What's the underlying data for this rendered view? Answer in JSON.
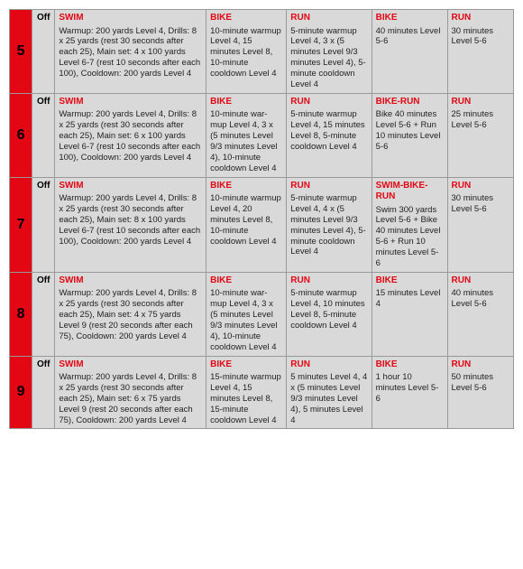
{
  "colors": {
    "accent": "#e30613",
    "shade": "#d9d9d9"
  },
  "off_label": "Off",
  "rows": [
    {
      "week": "5",
      "swim_hd": "SWIM",
      "swim": "Warmup: 200 yards Level 4, Drills: 8 x 25 yards (rest 30 seconds after each 25), Main set: 4 x 100  yards Level 6-7 (rest 10 seconds after each 100), Cooldown: 200 yards Level 4",
      "bike_hd": "BIKE",
      "bike": "10-minute warmup Level 4, 15 minutes Level 8, 10-minute cooldown Level 4",
      "run_hd": "RUN",
      "run": "5-minute warmup Level 4, 3 x (5 minutes Level 9/3 minutes Level 4), 5-minute cooldown Level 4",
      "brk_hd": "BIKE",
      "brk": "40 minutes Level 5-6",
      "run2_hd": "RUN",
      "run2": "30 minutes Level 5-6"
    },
    {
      "week": "6",
      "swim_hd": "SWIM",
      "swim": "Warmup: 200 yards Level 4, Drills: 8 x 25 yards (rest 30 seconds after each 25), Main set: 6 x 100  yards Level 6-7 (rest 10 seconds after each 100), Cooldown: 200 yards Level 4",
      "bike_hd": "BIKE",
      "bike": "10-minute war-mup Level 4, 3 x (5 minutes Level 9/3 minutes Level 4), 10-minute cooldown Level 4",
      "run_hd": "RUN",
      "run": "5-minute warmup Level 4, 15 minutes Level 8, 5-minute cooldown Level 4",
      "brk_hd": "BIKE-RUN",
      "brk": "Bike 40 minutes Level 5-6 + Run 10 minutes Level 5-6",
      "run2_hd": "RUN",
      "run2": "25 minutes Level 5-6"
    },
    {
      "week": "7",
      "swim_hd": "SWIM",
      "swim": "Warmup: 200 yards Level 4, Drills: 8 x 25 yards (rest 30 seconds after each 25), Main set: 8 x 100  yards Level 6-7 (rest 10 seconds after each 100), Cooldown: 200 yards Level 4",
      "bike_hd": "BIKE",
      "bike": "10-minute warmup Level 4, 20 minutes Level 8, 10-minute cooldown Level 4",
      "run_hd": "RUN",
      "run": "5-minute warmup Level 4, 4 x (5 minutes Level 9/3 minutes Level 4), 5-minute cooldown Level 4",
      "brk_hd": "SWIM-BIKE-RUN",
      "brk": "Swim 300 yards Level 5-6 + Bike 40 minutes Level 5-6 + Run 10 minutes Level 5-6",
      "run2_hd": "RUN",
      "run2": "30 minutes Level 5-6"
    },
    {
      "week": "8",
      "swim_hd": "SWIM",
      "swim": "Warmup: 200 yards Level 4, Drills: 8 x 25 yards (rest 30 seconds after each 25), Main set: 4 x 75  yards Level 9 (rest 20 seconds after each 75), Cooldown: 200 yards Level 4",
      "bike_hd": "BIKE",
      "bike": "10-minute war-mup Level 4, 3 x (5 minutes Level 9/3 minutes Level 4), 10-minute cooldown Level 4",
      "run_hd": "RUN",
      "run": "5-minute warmup Level 4, 10 minutes Level 8, 5-minute cooldown Level 4",
      "brk_hd": "BIKE",
      "brk": "15 minutes Level 4",
      "run2_hd": "RUN",
      "run2": "40 minutes Level 5-6"
    },
    {
      "week": "9",
      "swim_hd": "SWIM",
      "swim": "Warmup: 200 yards Level 4, Drills: 8 x 25 yards (rest 30 seconds after each 25), Main set: 6 x 75  yards Level 9 (rest 20 seconds after each 75), Cooldown: 200 yards Level 4",
      "bike_hd": "BIKE",
      "bike": "15-minute warmup Level 4, 15 minutes Level 8, 15-minute cooldown Level 4",
      "run_hd": "RUN",
      "run": "5 minutes Level 4, 4 x (5 minutes Level 9/3 minutes Level 4), 5 minutes Level 4",
      "brk_hd": "BIKE",
      "brk": "1 hour 10 minutes Level 5-6",
      "run2_hd": "RUN",
      "run2": "50 minutes Level 5-6"
    }
  ]
}
